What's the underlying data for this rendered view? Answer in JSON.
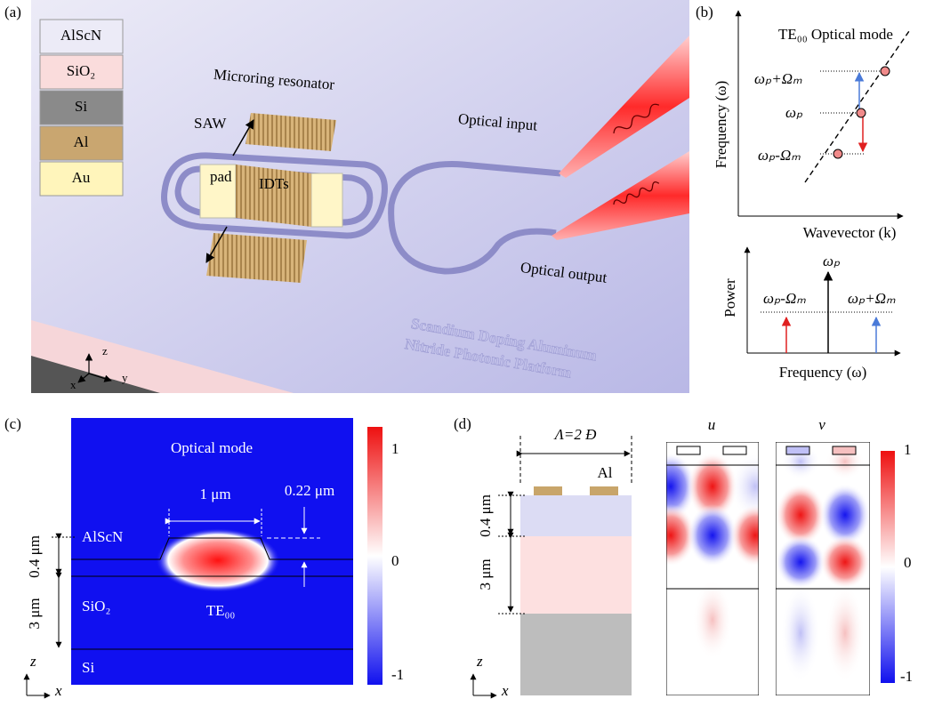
{
  "panel_a": {
    "label": "(a)",
    "materials": [
      "AlScN",
      "SiO₂",
      "Si",
      "Al",
      "Au"
    ],
    "microring": "Microring resonator",
    "saw": "SAW",
    "pad": "pad",
    "idts": "IDTs",
    "input": "Optical input",
    "output": "Optical output",
    "watermark": [
      "Scandium Doping Aluminum",
      "Nitride Photonic Platform"
    ],
    "axes": [
      "z",
      "y",
      "x"
    ]
  },
  "panel_b": {
    "label": "(b)",
    "mode": "TE₀₀ Optical mode",
    "levels": [
      "ωₚ+Ωₘ",
      "ωₚ",
      "ωₚ-Ωₘ"
    ],
    "y_axis": "Frequency (ω)",
    "x_axis": "Wavevector (k)",
    "power": "Power",
    "peaks": [
      "ωₚ-Ωₘ",
      "ωₚ",
      "ωₚ+Ωₘ"
    ],
    "x_axis_lower": "Frequency (ω)"
  },
  "panel_c": {
    "label": "(c)",
    "title": "Optical mode",
    "width": "1 μm",
    "height": "0.22 μm",
    "layers": [
      "AlScN",
      "SiO₂",
      "Si"
    ],
    "thickness": [
      "0.4 μm",
      "3 μm"
    ],
    "mode": "TE₀₀",
    "axes": [
      "z",
      "x"
    ],
    "colorbar": [
      "1",
      "0",
      "-1"
    ]
  },
  "panel_d": {
    "label": "(d)",
    "period": "Λ=2 Ð",
    "electrode": "Al",
    "thickness": [
      "0.4 μm",
      "3 μm"
    ],
    "fields": [
      "u",
      "v"
    ],
    "axes": [
      "z",
      "x"
    ],
    "colorbar": [
      "1",
      "0",
      "-1"
    ]
  }
}
